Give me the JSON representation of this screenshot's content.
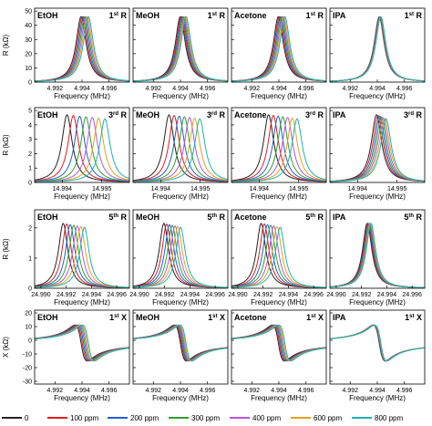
{
  "chart_data": {
    "type": "line",
    "series_names": [
      "0",
      "100 ppm",
      "200 ppm",
      "300 ppm",
      "400 ppm",
      "600 ppm",
      "800 ppm"
    ],
    "colors": [
      "#222222",
      "#e41a1c",
      "#1f5fd6",
      "#2ca02c",
      "#b455d6",
      "#e6a21a",
      "#17b3b3"
    ],
    "solvents": [
      "EtOH",
      "MeOH",
      "Acetone",
      "IPA"
    ],
    "rows": [
      {
        "harmonic_pre": "1",
        "harmonic_sup": "st",
        "harmonic_post": " R",
        "ylabel": "R (kΩ)",
        "xlabel": "Frequency (MHz)",
        "xlim": [
          4.9905,
          4.9975
        ],
        "ylim": [
          0,
          52
        ],
        "xticks": [
          4.992,
          4.994,
          4.996
        ],
        "xtick_labels": [
          "4.992",
          "4.994",
          "4.996"
        ],
        "yticks": [
          0,
          10,
          20,
          30,
          40,
          50
        ],
        "ytick_labels": [
          "0",
          "10",
          "20",
          "30",
          "40",
          "50"
        ],
        "kind": "peak",
        "center": 4.9942,
        "width": 0.00045,
        "peak": 46,
        "shift": {
          "EtOH": 9e-05,
          "MeOH": 7e-05,
          "Acetone": 8e-05,
          "IPA": 2e-05
        }
      },
      {
        "harmonic_pre": "3",
        "harmonic_sup": "rd",
        "harmonic_post": " R",
        "ylabel": "R (kΩ)",
        "xlabel": "Frequency (MHz)",
        "xlim": [
          14.9933,
          14.9957
        ],
        "ylim": [
          0,
          5.2
        ],
        "xticks": [
          14.994,
          14.995
        ],
        "xtick_labels": [
          "14.994",
          "14.995"
        ],
        "yticks": [
          0,
          1,
          2,
          3,
          4,
          5
        ],
        "ytick_labels": [
          "0",
          "1",
          "2",
          "3",
          "4",
          "5"
        ],
        "kind": "peak",
        "center": 14.9946,
        "width": 0.00016,
        "peak": 4.7,
        "shift": {
          "EtOH": 0.00016,
          "MeOH": 0.00013,
          "Acetone": 0.00012,
          "IPA": 4e-05
        }
      },
      {
        "harmonic_pre": "5",
        "harmonic_sup": "th",
        "harmonic_post": " R",
        "ylabel": "R (kΩ)",
        "xlabel": "Frequency (MHz)",
        "xlim": [
          24.9895,
          24.997
        ],
        "ylim": [
          0,
          2.6
        ],
        "xticks": [
          24.99,
          24.992,
          24.994,
          24.996
        ],
        "xtick_labels": [
          "24.990",
          "24.992",
          "24.994",
          "24.996"
        ],
        "yticks": [
          0,
          1,
          2
        ],
        "ytick_labels": [
          "0",
          "1",
          "2"
        ],
        "kind": "peak",
        "center": 24.9926,
        "width": 0.00045,
        "peak": 2.15,
        "shift": {
          "EtOH": 0.00028,
          "MeOH": 0.00022,
          "Acetone": 0.00025,
          "IPA": 5e-05
        }
      },
      {
        "harmonic_pre": "1",
        "harmonic_sup": "st",
        "harmonic_post": " X",
        "ylabel": "X (kΩ)",
        "xlabel": "Frequency (MHz)",
        "xlim": [
          4.9905,
          4.9975
        ],
        "ylim": [
          -32,
          22
        ],
        "xticks": [
          4.992,
          4.994,
          4.996
        ],
        "xtick_labels": [
          "4.992",
          "4.994",
          "4.996"
        ],
        "yticks": [
          -30,
          -20,
          -10,
          0,
          10,
          20
        ],
        "ytick_labels": [
          "-30",
          "-20",
          "-10",
          "0",
          "10",
          "20"
        ],
        "kind": "disp",
        "center": 4.9942,
        "width": 0.00045,
        "peak": 25,
        "shift": {
          "EtOH": 9e-05,
          "MeOH": 7e-05,
          "Acetone": 8e-05,
          "IPA": 2e-05
        }
      }
    ],
    "legend_position": "bottom"
  }
}
